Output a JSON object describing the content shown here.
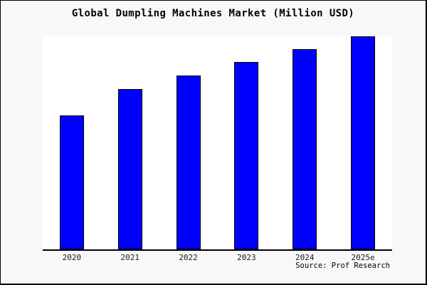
{
  "window": {
    "background_color": "#f8f8f8",
    "plot_background_color": "#ffffff",
    "border_color": "#000000"
  },
  "chart_data": {
    "type": "bar",
    "title": "Global Dumpling Machines Market (Million USD)",
    "xlabel": "",
    "ylabel": "",
    "categories": [
      "2020",
      "2021",
      "2022",
      "2023",
      "2024",
      "2025e"
    ],
    "values": [
      189,
      226,
      245,
      264,
      282,
      300
    ],
    "ylim": [
      0,
      301
    ],
    "grid": false,
    "legend_position": "none",
    "bar_color": "#0000ff",
    "bar_border_color": "#000000",
    "axis_color": "#000000",
    "source": "Source: Prof Research"
  }
}
